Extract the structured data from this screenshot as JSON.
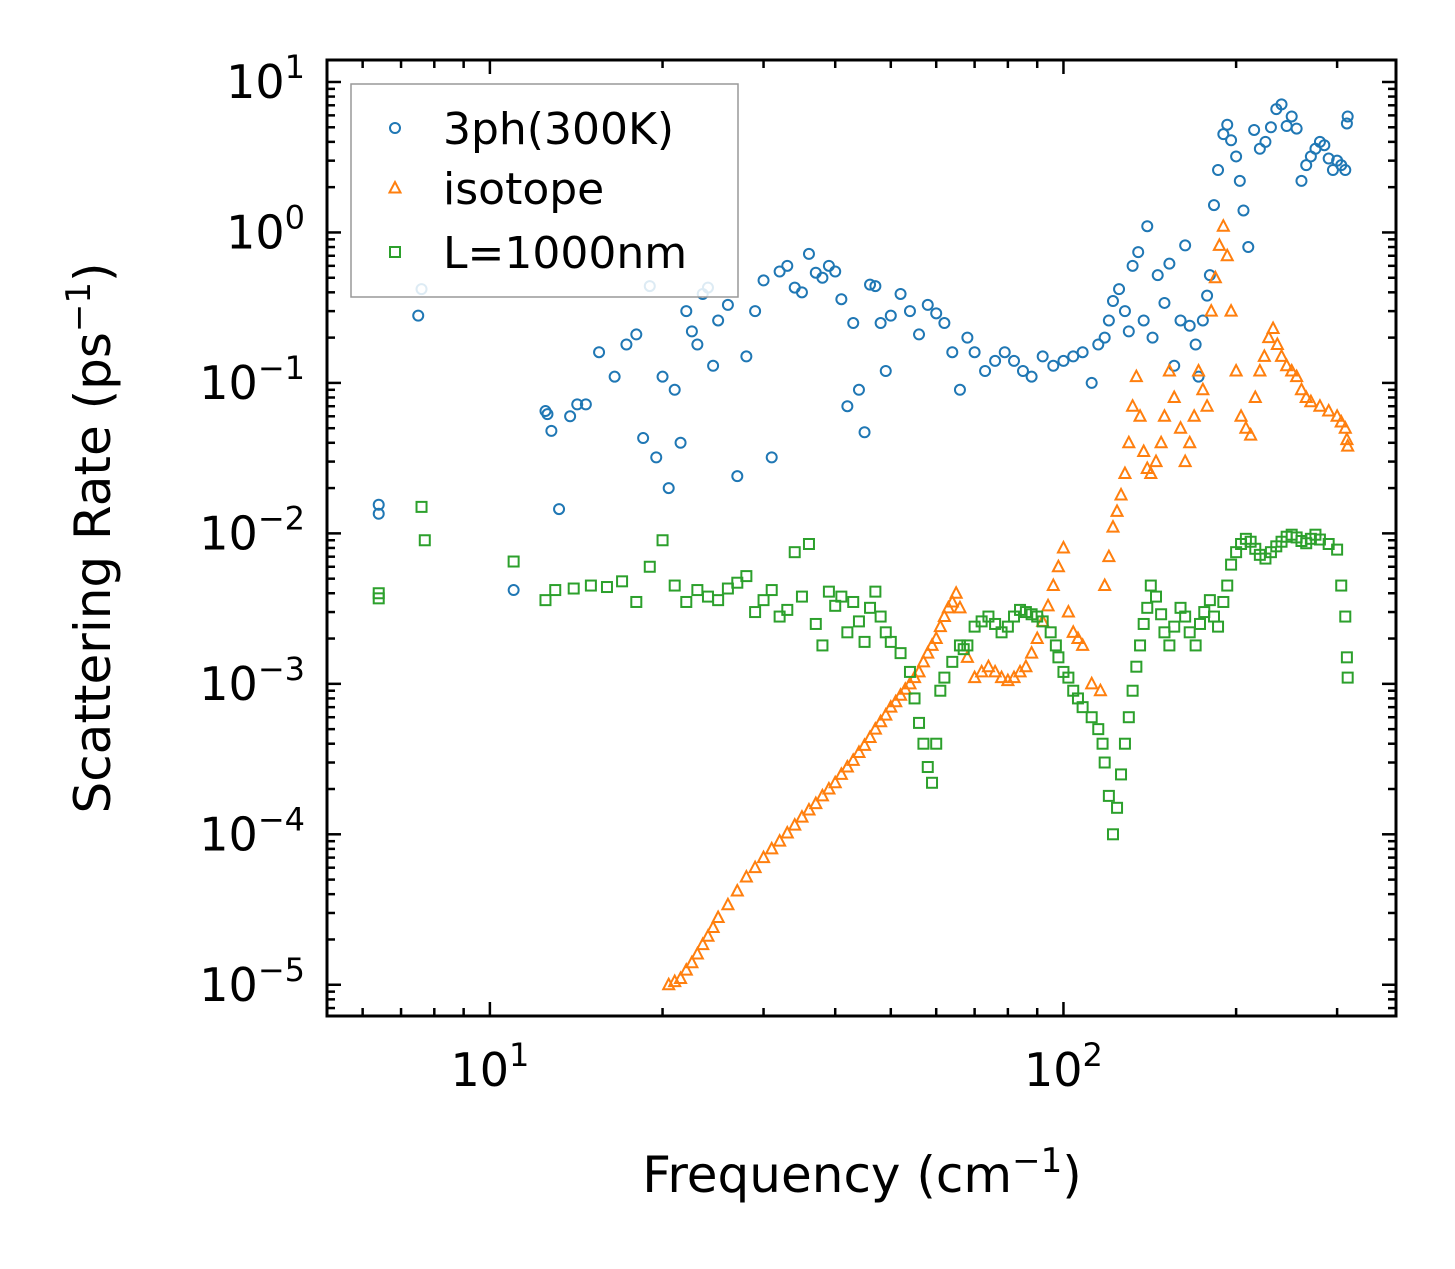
{
  "chart_data": {
    "type": "scatter",
    "title": "",
    "xlabel": "Frequency (cm",
    "xlabel_sup": "−1",
    "xlabel_end": ")",
    "ylabel": "Scattering Rate (ps",
    "ylabel_sup": "−1",
    "ylabel_end": ")",
    "xscale": "log",
    "yscale": "log",
    "xlim": [
      5.2,
      380
    ],
    "ylim": [
      6.2e-06,
      14
    ],
    "x_ticks": [
      {
        "value": 10,
        "base": "10",
        "exp": "1"
      },
      {
        "value": 100,
        "base": "10",
        "exp": "2"
      }
    ],
    "y_ticks": [
      {
        "value": 10,
        "base": "10",
        "exp": "1"
      },
      {
        "value": 1,
        "base": "10",
        "exp": "0"
      },
      {
        "value": 0.1,
        "base": "10",
        "exp": "−1"
      },
      {
        "value": 0.01,
        "base": "10",
        "exp": "−2"
      },
      {
        "value": 0.001,
        "base": "10",
        "exp": "−3"
      },
      {
        "value": 0.0001,
        "base": "10",
        "exp": "−4"
      },
      {
        "value": 1e-05,
        "base": "10",
        "exp": "−5"
      }
    ],
    "legend_position": "top-left",
    "series": [
      {
        "name": "3ph(300K)",
        "marker": "circle",
        "color": "#1f77b4",
        "x": [
          6.4,
          6.4,
          7.5,
          7.6,
          11,
          12.5,
          12.6,
          12.8,
          13.2,
          13.8,
          14.2,
          14.7,
          15.5,
          16.5,
          17.3,
          18,
          18.5,
          19,
          19.5,
          20,
          20.5,
          21,
          21.5,
          22,
          22.5,
          23,
          23.5,
          24,
          24.5,
          25,
          26,
          27,
          28,
          29,
          30,
          31,
          32,
          33,
          34,
          35,
          36,
          37,
          38,
          39,
          40,
          41,
          42,
          43,
          44,
          45,
          46,
          47,
          48,
          49,
          50,
          52,
          54,
          56,
          58,
          60,
          62,
          64,
          66,
          68,
          70,
          73,
          76,
          79,
          82,
          85,
          88,
          92,
          96,
          100,
          104,
          108,
          112,
          115,
          118,
          120,
          122,
          125,
          128,
          130,
          132,
          135,
          138,
          140,
          143,
          146,
          150,
          153,
          156,
          160,
          163,
          166,
          170,
          172,
          175,
          178,
          180,
          183,
          186,
          190,
          193,
          196,
          200,
          203,
          206,
          210,
          215,
          220,
          225,
          230,
          235,
          240,
          245,
          250,
          255,
          260,
          265,
          270,
          275,
          280,
          285,
          290,
          295,
          300,
          305,
          310,
          312,
          313
        ],
        "y": [
          0.0155,
          0.0135,
          0.28,
          0.42,
          0.0042,
          0.065,
          0.062,
          0.048,
          0.0145,
          0.06,
          0.072,
          0.072,
          0.16,
          0.11,
          0.18,
          0.21,
          0.043,
          0.44,
          0.032,
          0.11,
          0.02,
          0.09,
          0.04,
          0.3,
          0.22,
          0.18,
          0.39,
          0.43,
          0.13,
          0.26,
          0.33,
          0.024,
          0.15,
          0.3,
          0.48,
          0.032,
          0.55,
          0.6,
          0.43,
          0.4,
          0.72,
          0.54,
          0.5,
          0.6,
          0.55,
          0.36,
          0.07,
          0.25,
          0.09,
          0.047,
          0.45,
          0.44,
          0.25,
          0.12,
          0.28,
          0.39,
          0.3,
          0.21,
          0.33,
          0.29,
          0.25,
          0.16,
          0.09,
          0.2,
          0.16,
          0.12,
          0.14,
          0.16,
          0.14,
          0.12,
          0.11,
          0.15,
          0.13,
          0.14,
          0.15,
          0.16,
          0.1,
          0.18,
          0.2,
          0.26,
          0.35,
          0.42,
          0.3,
          0.22,
          0.6,
          0.74,
          0.26,
          1.1,
          0.2,
          0.52,
          0.34,
          0.62,
          0.13,
          0.26,
          0.82,
          0.24,
          0.18,
          0.11,
          0.26,
          0.38,
          0.52,
          1.52,
          2.6,
          4.5,
          5.2,
          4.1,
          3.2,
          2.2,
          1.4,
          0.8,
          4.8,
          3.6,
          4.0,
          5.0,
          6.6,
          7.1,
          5.1,
          5.9,
          4.9,
          2.2,
          2.8,
          3.2,
          3.6,
          4.0,
          3.8,
          3.1,
          2.6,
          3.0,
          2.8,
          2.6,
          5.3,
          5.9
        ]
      },
      {
        "name": "isotope",
        "marker": "triangle",
        "color": "#ff7f0e",
        "x": [
          20.5,
          21,
          21.5,
          22,
          22.5,
          23,
          23.5,
          24,
          24.5,
          25,
          26,
          27,
          28,
          29,
          30,
          31,
          32,
          33,
          34,
          35,
          36,
          37,
          38,
          39,
          40,
          41,
          42,
          43,
          44,
          45,
          46,
          47,
          48,
          49,
          50,
          51,
          52,
          53,
          54,
          55,
          56,
          57,
          58,
          59,
          60,
          61,
          62,
          63,
          64,
          65,
          66,
          68,
          70,
          72,
          74,
          76,
          78,
          80,
          82,
          84,
          86,
          88,
          90,
          92,
          94,
          96,
          98,
          100,
          102,
          104,
          106,
          108,
          112,
          116,
          118,
          120,
          122,
          124,
          126,
          128,
          130,
          132,
          134,
          136,
          138,
          140,
          142,
          145,
          148,
          150,
          153,
          156,
          160,
          163,
          166,
          169,
          172,
          175,
          178,
          181,
          184,
          187,
          190,
          193,
          196,
          200,
          204,
          208,
          212,
          216,
          220,
          224,
          228,
          232,
          236,
          240,
          245,
          250,
          255,
          260,
          265,
          270,
          280,
          290,
          300,
          305,
          310,
          312,
          313
        ],
        "y": [
          1e-05,
          1.05e-05,
          1.1e-05,
          1.25e-05,
          1.4e-05,
          1.6e-05,
          1.85e-05,
          2.1e-05,
          2.4e-05,
          2.8e-05,
          3.4e-05,
          4.2e-05,
          5.2e-05,
          6e-05,
          7e-05,
          8e-05,
          9e-05,
          0.000102,
          0.000115,
          0.00013,
          0.000145,
          0.00016,
          0.00018,
          0.0002,
          0.00022,
          0.00025,
          0.00028,
          0.00031,
          0.00035,
          0.00039,
          0.00044,
          0.0005,
          0.00056,
          0.00062,
          0.0007,
          0.00076,
          0.00084,
          0.00092,
          0.001,
          0.0011,
          0.0012,
          0.0014,
          0.0016,
          0.0018,
          0.002,
          0.0024,
          0.0028,
          0.0032,
          0.0035,
          0.004,
          0.0032,
          0.0015,
          0.0011,
          0.0012,
          0.0013,
          0.0012,
          0.0011,
          0.00105,
          0.0011,
          0.0012,
          0.0013,
          0.0016,
          0.002,
          0.0026,
          0.0033,
          0.0045,
          0.006,
          0.008,
          0.003,
          0.0022,
          0.002,
          0.0018,
          0.001,
          0.0009,
          0.0045,
          0.007,
          0.011,
          0.014,
          0.018,
          0.025,
          0.04,
          0.07,
          0.11,
          0.06,
          0.035,
          0.027,
          0.025,
          0.03,
          0.04,
          0.06,
          0.12,
          0.08,
          0.05,
          0.03,
          0.04,
          0.06,
          0.12,
          0.09,
          0.07,
          0.3,
          0.5,
          0.82,
          1.1,
          0.7,
          0.3,
          0.12,
          0.06,
          0.05,
          0.045,
          0.08,
          0.12,
          0.15,
          0.2,
          0.23,
          0.18,
          0.15,
          0.13,
          0.12,
          0.11,
          0.09,
          0.08,
          0.075,
          0.07,
          0.065,
          0.06,
          0.055,
          0.05,
          0.042,
          0.038
        ]
      },
      {
        "name": "L=1000nm",
        "marker": "square",
        "color": "#2ca02c",
        "x": [
          6.4,
          6.4,
          7.6,
          7.7,
          11,
          12.5,
          13,
          14,
          15,
          16,
          17,
          18,
          19,
          20,
          21,
          22,
          23,
          24,
          25,
          26,
          27,
          28,
          29,
          30,
          31,
          32,
          33,
          34,
          35,
          36,
          37,
          38,
          39,
          40,
          41,
          42,
          43,
          44,
          45,
          46,
          47,
          48,
          49,
          50,
          52,
          54,
          55,
          56,
          57,
          58,
          59,
          60,
          61,
          62,
          64,
          66,
          67,
          68,
          70,
          72,
          74,
          76,
          78,
          80,
          82,
          84,
          86,
          88,
          90,
          92,
          95,
          97,
          98,
          100,
          102,
          104,
          106,
          108,
          112,
          115,
          117,
          118,
          120,
          122,
          124,
          126,
          128,
          130,
          132,
          134,
          136,
          138,
          140,
          142,
          145,
          148,
          150,
          153,
          156,
          160,
          163,
          166,
          170,
          173,
          176,
          180,
          183,
          186,
          190,
          193,
          196,
          200,
          204,
          208,
          212,
          216,
          220,
          225,
          230,
          235,
          240,
          245,
          250,
          255,
          260,
          265,
          270,
          275,
          280,
          290,
          300,
          305,
          310,
          312,
          313
        ],
        "y": [
          0.0037,
          0.004,
          0.015,
          0.009,
          0.0065,
          0.0036,
          0.0042,
          0.0043,
          0.0045,
          0.0044,
          0.0048,
          0.0035,
          0.006,
          0.009,
          0.0045,
          0.0035,
          0.0042,
          0.0038,
          0.0036,
          0.0043,
          0.0047,
          0.0052,
          0.003,
          0.0036,
          0.0042,
          0.0028,
          0.0031,
          0.0075,
          0.0038,
          0.0085,
          0.0025,
          0.0018,
          0.0041,
          0.0033,
          0.0038,
          0.0022,
          0.0035,
          0.0026,
          0.0019,
          0.0032,
          0.0041,
          0.0028,
          0.0022,
          0.0019,
          0.0016,
          0.0012,
          0.0008,
          0.00055,
          0.0004,
          0.00028,
          0.00022,
          0.0004,
          0.0009,
          0.0011,
          0.0014,
          0.0018,
          0.0017,
          0.0018,
          0.0024,
          0.0026,
          0.0028,
          0.0025,
          0.0022,
          0.0024,
          0.0028,
          0.0031,
          0.003,
          0.0029,
          0.0028,
          0.0026,
          0.0022,
          0.0018,
          0.0015,
          0.0012,
          0.0011,
          0.0009,
          0.0008,
          0.0007,
          0.0006,
          0.0005,
          0.0004,
          0.0003,
          0.00018,
          0.0001,
          0.00015,
          0.00025,
          0.0004,
          0.0006,
          0.0009,
          0.0013,
          0.0018,
          0.0025,
          0.0032,
          0.0045,
          0.0038,
          0.0029,
          0.0022,
          0.0018,
          0.0024,
          0.0032,
          0.0028,
          0.0022,
          0.0018,
          0.0025,
          0.003,
          0.0036,
          0.0028,
          0.0024,
          0.0035,
          0.0045,
          0.0062,
          0.0075,
          0.0085,
          0.0092,
          0.0088,
          0.0079,
          0.0072,
          0.0068,
          0.0075,
          0.0082,
          0.0088,
          0.0095,
          0.0098,
          0.0094,
          0.0089,
          0.0086,
          0.0092,
          0.0098,
          0.0091,
          0.0085,
          0.0078,
          0.0045,
          0.0028,
          0.0015,
          0.0011
        ]
      }
    ]
  }
}
